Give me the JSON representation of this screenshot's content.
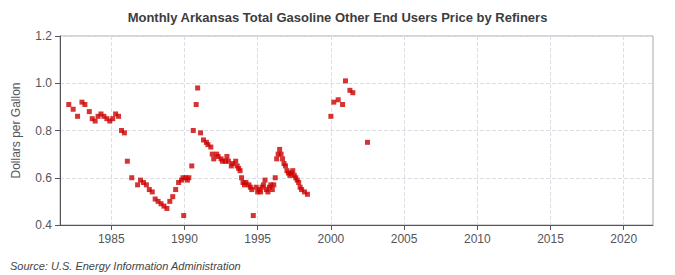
{
  "chart_data": {
    "type": "scatter",
    "title": "Monthly Arkansas Total Gasoline Other End Users Price by Refiners",
    "ylabel": "Dollars per Gallon",
    "annotations": [
      "Source: U.S. Energy Information Administration"
    ],
    "color": "#cc0000",
    "marker": "square",
    "grid": true,
    "xlim": [
      1981.5,
      2022
    ],
    "ylim": [
      0.4,
      1.2
    ],
    "xticks": [
      1985,
      1990,
      1995,
      2000,
      2005,
      2010,
      2015,
      2020
    ],
    "yticks": [
      0.4,
      0.6,
      0.8,
      {
        "value": 1,
        "label": "1.0"
      },
      1.2
    ],
    "x": [
      1982.1,
      1982.4,
      1982.7,
      1983.0,
      1983.2,
      1983.5,
      1983.7,
      1983.9,
      1984.1,
      1984.3,
      1984.5,
      1984.7,
      1984.9,
      1985.1,
      1985.3,
      1985.5,
      1985.7,
      1985.9,
      1986.1,
      1986.4,
      1986.8,
      1987.0,
      1987.2,
      1987.4,
      1987.6,
      1987.8,
      1988.0,
      1988.2,
      1988.4,
      1988.6,
      1988.8,
      1989.0,
      1989.2,
      1989.4,
      1989.6,
      1989.8,
      1989.9,
      1989.95,
      1990.1,
      1990.2,
      1990.3,
      1990.5,
      1990.6,
      1990.8,
      1990.9,
      1991.1,
      1991.3,
      1991.5,
      1991.6,
      1991.8,
      1991.9,
      1992.0,
      1992.2,
      1992.3,
      1992.5,
      1992.6,
      1992.8,
      1992.9,
      1993.0,
      1993.2,
      1993.3,
      1993.5,
      1993.6,
      1993.7,
      1993.8,
      1993.9,
      1994.0,
      1994.1,
      1994.2,
      1994.4,
      1994.5,
      1994.6,
      1994.7,
      1994.9,
      1995.0,
      1995.1,
      1995.2,
      1995.3,
      1995.4,
      1995.5,
      1995.6,
      1995.7,
      1995.8,
      1995.9,
      1996.0,
      1996.1,
      1996.2,
      1996.3,
      1996.4,
      1996.5,
      1996.6,
      1996.7,
      1996.8,
      1996.9,
      1997.0,
      1997.1,
      1997.2,
      1997.3,
      1997.4,
      1997.5,
      1997.6,
      1997.7,
      1997.8,
      1997.9,
      1998.0,
      1998.2,
      1998.4,
      2000.0,
      2000.2,
      2000.5,
      2000.8,
      2001.0,
      2001.3,
      2001.5,
      2002.5
    ],
    "values": [
      0.91,
      0.89,
      0.86,
      0.92,
      0.91,
      0.88,
      0.85,
      0.84,
      0.86,
      0.87,
      0.86,
      0.85,
      0.84,
      0.85,
      0.87,
      0.86,
      0.8,
      0.79,
      0.67,
      0.6,
      0.57,
      0.59,
      0.58,
      0.57,
      0.55,
      0.54,
      0.51,
      0.5,
      0.49,
      0.48,
      0.47,
      0.5,
      0.52,
      0.55,
      0.58,
      0.59,
      0.6,
      0.44,
      0.6,
      0.59,
      0.6,
      0.65,
      0.8,
      0.91,
      0.98,
      0.79,
      0.76,
      0.75,
      0.74,
      0.73,
      0.7,
      0.68,
      0.7,
      0.69,
      0.68,
      0.67,
      0.67,
      0.69,
      0.67,
      0.65,
      0.66,
      0.67,
      0.65,
      0.64,
      0.63,
      0.6,
      0.58,
      0.57,
      0.58,
      0.57,
      0.56,
      0.55,
      0.44,
      0.56,
      0.54,
      0.55,
      0.54,
      0.56,
      0.57,
      0.59,
      0.55,
      0.54,
      0.56,
      0.57,
      0.55,
      0.57,
      0.6,
      0.68,
      0.7,
      0.72,
      0.7,
      0.68,
      0.66,
      0.65,
      0.63,
      0.62,
      0.61,
      0.62,
      0.63,
      0.61,
      0.6,
      0.59,
      0.58,
      0.56,
      0.55,
      0.54,
      0.53,
      0.86,
      0.92,
      0.93,
      0.91,
      1.01,
      0.97,
      0.96,
      0.75
    ]
  }
}
